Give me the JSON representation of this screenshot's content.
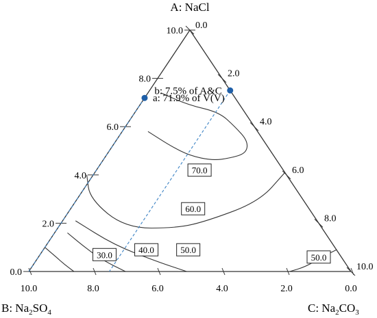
{
  "chart_data": {
    "type": "ternary-contour",
    "title": "",
    "vertices": {
      "A": {
        "label": "A: NaCl",
        "position": "top"
      },
      "B": {
        "label_prefix": "B: Na",
        "sub1": "2",
        "label_mid": "SO",
        "sub2": "4",
        "position": "bottom-left"
      },
      "C": {
        "label_prefix": "C: Na",
        "sub1": "2",
        "label_mid": "CO",
        "sub2": "3",
        "position": "bottom-right"
      }
    },
    "axes": {
      "B_axis_ticks": [
        "10.0",
        "8.0",
        "6.0",
        "4.0",
        "2.0",
        "0.0"
      ],
      "left_edge_ticks": [
        "10.0",
        "8.0",
        "6.0",
        "4.0",
        "2.0",
        "0.0"
      ],
      "right_edge_ticks": [
        "0.0",
        "2.0",
        "4.0",
        "6.0",
        "8.0",
        "10.0"
      ],
      "range": [
        0,
        10
      ]
    },
    "contours": [
      {
        "label": "70.0",
        "level": 70.0,
        "points": [
          [
            7.4,
            2.2
          ],
          [
            6.9,
            1.6
          ],
          [
            6.6,
            0.8
          ],
          [
            6.0,
            0.6
          ],
          [
            5.4,
            0.5
          ],
          [
            4.9,
            0.8
          ],
          [
            4.7,
            1.4
          ],
          [
            4.6,
            2.0
          ],
          [
            4.8,
            2.6
          ],
          [
            5.2,
            3.0
          ],
          [
            5.8,
            3.4
          ]
        ]
      },
      {
        "label": "60.0",
        "level": 60.0,
        "points": [
          [
            4.1,
            0.0
          ],
          [
            2.9,
            1.4
          ],
          [
            2.1,
            3.4
          ],
          [
            1.8,
            4.5
          ],
          [
            1.8,
            6.1
          ],
          [
            3.0,
            6.6
          ],
          [
            4.0,
            6.2
          ]
        ]
      },
      {
        "label": "50.0",
        "level": 50.0,
        "points": [
          [
            0.9,
            0.0
          ],
          [
            0.6,
            0.6
          ],
          [
            0.2,
            1.3
          ],
          [
            0.0,
            1.9
          ]
        ]
      },
      {
        "label": "50.0",
        "level": 50.0,
        "points": [
          [
            0.0,
            5.1
          ],
          [
            0.4,
            5.8
          ],
          [
            1.1,
            6.8
          ],
          [
            2.1,
            7.5
          ]
        ]
      },
      {
        "label": "40.0",
        "level": 40.0,
        "points": [
          [
            0.0,
            7.0
          ],
          [
            0.5,
            7.5
          ],
          [
            1.1,
            7.8
          ],
          [
            1.6,
            8.0
          ]
        ]
      },
      {
        "label": "30.0",
        "level": 30.0,
        "points": [
          [
            0.0,
            8.6
          ],
          [
            0.3,
            8.75
          ],
          [
            0.6,
            8.85
          ],
          [
            1.0,
            9.0
          ]
        ]
      }
    ],
    "points": [
      {
        "id": "b",
        "label": "b: 7.5% of A&C",
        "coords": [
          7.5,
          0.0,
          2.5
        ]
      },
      {
        "id": "a",
        "label": "a: 71.9% of  V(V)",
        "coords": [
          7.19,
          2.81,
          0.0
        ]
      }
    ],
    "dashed_lines": [
      {
        "from": [
          7.5,
          0.0,
          2.5
        ],
        "to": [
          0.0,
          7.5,
          2.5
        ]
      },
      {
        "from": [
          7.19,
          2.81,
          0.0
        ],
        "to": [
          0.0,
          10.0,
          0.0
        ]
      }
    ],
    "colors": {
      "line": "#333333",
      "dashed": "#3b82c4",
      "marker": "#1f5fa8"
    },
    "grid": false
  }
}
